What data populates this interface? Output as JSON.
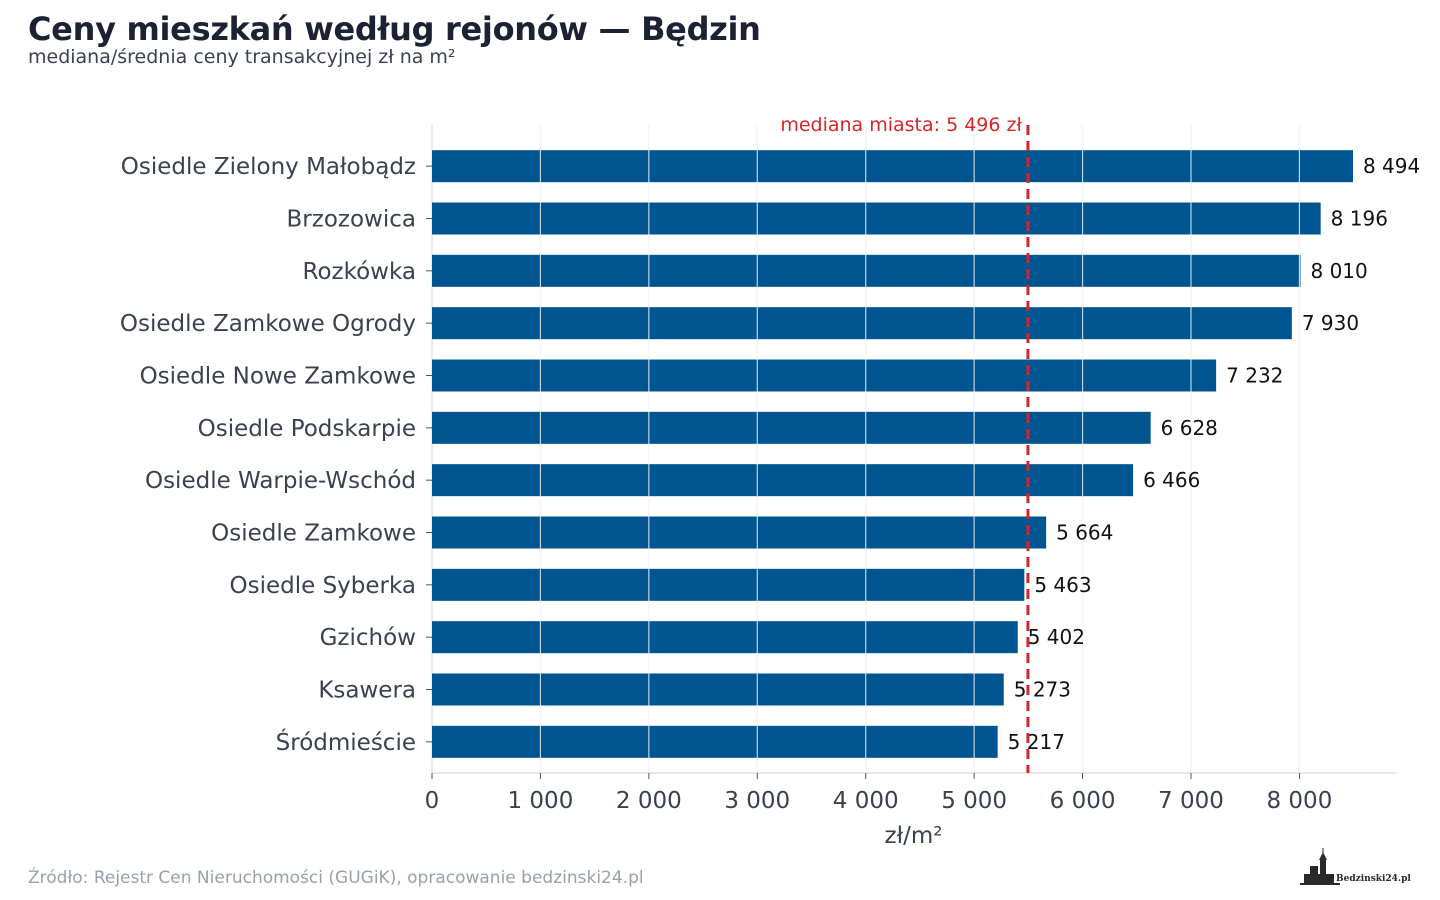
{
  "title": "Ceny mieszkań według rejonów — Będzin",
  "subtitle": "mediana/średnia ceny transakcyjnej zł na m²",
  "source": "Źródło: Rejestr Cen Nieruchomości (GUGiK), opracowanie bedzinski24.pl",
  "logo_text": "Bedzinski24.pl",
  "chart_data": {
    "type": "bar",
    "orientation": "horizontal",
    "categories": [
      "Osiedle Zielony Małobądz",
      "Brzozowica",
      "Rozkówka",
      "Osiedle Zamkowe Ogrody",
      "Osiedle Nowe Zamkowe",
      "Osiedle Podskarpie",
      "Osiedle Warpie-Wschód",
      "Osiedle Zamkowe",
      "Osiedle Syberka",
      "Gzichów",
      "Ksawera",
      "Śródmieście"
    ],
    "values": [
      8494,
      8196,
      8010,
      7930,
      7232,
      6628,
      6466,
      5664,
      5463,
      5402,
      5273,
      5217
    ],
    "value_labels": [
      "8 494",
      "8 196",
      "8 010",
      "7 930",
      "7 232",
      "6 628",
      "6 466",
      "5 664",
      "5 463",
      "5 402",
      "5 273",
      "5 217"
    ],
    "xlabel": "zł/m²",
    "xlim": [
      0,
      8900
    ],
    "x_ticks": [
      0,
      1000,
      2000,
      3000,
      4000,
      5000,
      6000,
      7000,
      8000
    ],
    "x_tick_labels": [
      "0",
      "1 000",
      "2 000",
      "3 000",
      "4 000",
      "5 000",
      "6 000",
      "7 000",
      "8 000"
    ],
    "grid": "vertical",
    "reference_line": {
      "value": 5496,
      "label": "mediana miasta: 5 496 zł",
      "color": "#d62728"
    },
    "bar_color": "#00548f"
  }
}
